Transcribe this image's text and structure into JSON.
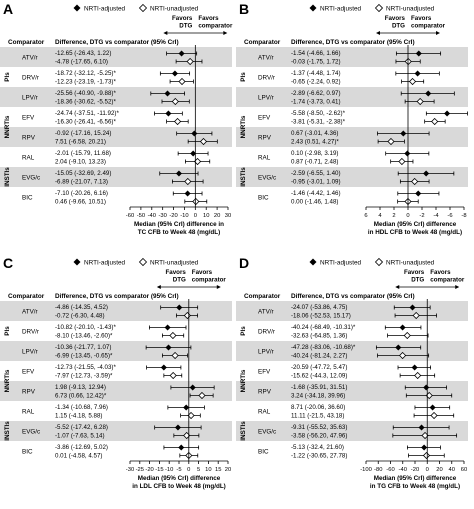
{
  "page_bg": "#ffffff",
  "colors": {
    "band": "#d9d9d9",
    "ink": "#000000",
    "open_marker": "#ffffff",
    "grid": "#000000"
  },
  "legend": {
    "adjusted": "NRTI-adjusted",
    "unadjusted": "NRTI-unadjusted"
  },
  "chart_data": [
    {
      "type": "forest",
      "panel": "A",
      "col_comparator": "Comparator",
      "col_difference": "Difference, DTG vs comparator (95% CrI)",
      "favors_dtg": [
        "Favors",
        "DTG"
      ],
      "favors_comparator": [
        "Favors",
        "comparator"
      ],
      "xlabel": [
        "Median (95% CrI) difference in",
        "TC CFB to Week 48 (mg/dL)"
      ],
      "xlim": [
        -60,
        30
      ],
      "xticks": [
        -60,
        -50,
        -40,
        -30,
        -20,
        -10,
        0,
        10,
        20,
        30
      ],
      "xtick_labels": [
        "-60",
        "-50",
        "-40",
        "-30",
        "-20",
        "-10",
        "0",
        "10",
        "20",
        "30"
      ],
      "groups": [
        {
          "label": "PIs",
          "rows": [
            0,
            1,
            2
          ]
        },
        {
          "label": "NNRTIs",
          "rows": [
            3,
            4
          ]
        },
        {
          "label": "INSTIs",
          "rows": [
            5,
            6,
            7
          ]
        }
      ],
      "rows": [
        {
          "comparator": "ATV/r",
          "shaded": true,
          "adjusted": {
            "text": "-12.65 (-26.43, 1.22)",
            "est": -12.65,
            "lo": -26.43,
            "hi": 1.22
          },
          "unadjusted": {
            "text": "-4.78 (-17.65, 6.10)",
            "est": -4.78,
            "lo": -17.65,
            "hi": 6.1
          }
        },
        {
          "comparator": "DRV/r",
          "shaded": false,
          "adjusted": {
            "text": "-18.72 (-32.12, -5.25)*",
            "est": -18.72,
            "lo": -32.12,
            "hi": -5.25
          },
          "unadjusted": {
            "text": "-12.23 (-23.19, -1.73)*",
            "est": -12.23,
            "lo": -23.19,
            "hi": -1.73
          }
        },
        {
          "comparator": "LPV/r",
          "shaded": true,
          "adjusted": {
            "text": "-25.56 (-40.90, -9.88)*",
            "est": -25.56,
            "lo": -40.9,
            "hi": -9.88
          },
          "unadjusted": {
            "text": "-18.36 (-30.62, -5.52)*",
            "est": -18.36,
            "lo": -30.62,
            "hi": -5.52
          }
        },
        {
          "comparator": "EFV",
          "shaded": false,
          "adjusted": {
            "text": "-24.74 (-37.51, -11.92)*",
            "est": -24.74,
            "lo": -37.51,
            "hi": -11.92
          },
          "unadjusted": {
            "text": "-16.30 (-26.41, -6.56)*",
            "est": -16.3,
            "lo": -26.41,
            "hi": -6.56
          }
        },
        {
          "comparator": "RPV",
          "shaded": true,
          "adjusted": {
            "text": "-0.92 (-17.16, 15.24)",
            "est": -0.92,
            "lo": -17.16,
            "hi": 15.24
          },
          "unadjusted": {
            "text": "7.51 (-6.58, 20.21)",
            "est": 7.51,
            "lo": -6.58,
            "hi": 20.21
          }
        },
        {
          "comparator": "RAL",
          "shaded": false,
          "adjusted": {
            "text": "-2.01 (-15.79, 11.68)",
            "est": -2.01,
            "lo": -15.79,
            "hi": 11.68
          },
          "unadjusted": {
            "text": "2.04 (-9.10, 13.23)",
            "est": 2.04,
            "lo": -9.1,
            "hi": 13.23
          }
        },
        {
          "comparator": "EVG/c",
          "shaded": true,
          "adjusted": {
            "text": "-15.05 (-32.69, 2.49)",
            "est": -15.05,
            "lo": -32.69,
            "hi": 2.49
          },
          "unadjusted": {
            "text": "-6.89 (-21.07, 7.13)",
            "est": -6.89,
            "lo": -21.07,
            "hi": 7.13
          }
        },
        {
          "comparator": "BIC",
          "shaded": false,
          "adjusted": {
            "text": "-7.10 (-20.26, 6.16)",
            "est": -7.1,
            "lo": -20.26,
            "hi": 6.16
          },
          "unadjusted": {
            "text": "0.46 (-9.66, 10.51)",
            "est": 0.46,
            "lo": -9.66,
            "hi": 10.51
          }
        }
      ]
    },
    {
      "type": "forest",
      "panel": "B",
      "col_comparator": "Comparator",
      "col_difference": "Difference, DTG vs comparator (95% CrI)",
      "favors_dtg": [
        "Favors",
        "DTG"
      ],
      "favors_comparator": [
        "Favors",
        "comparator"
      ],
      "xlabel": [
        "Median (95% CrI) difference",
        "in HDL CFB to Week 48 (mg/dL)"
      ],
      "xlim": [
        -8,
        6
      ],
      "xticks": [
        6,
        4,
        2,
        0,
        -2,
        -4,
        -6,
        -8
      ],
      "xtick_labels": [
        "6",
        "4",
        "2",
        "0",
        "-2",
        "-4",
        "-6",
        "-8"
      ],
      "reversed": true,
      "groups": [
        {
          "label": "PIs",
          "rows": [
            0,
            1,
            2
          ]
        },
        {
          "label": "NNRTIs",
          "rows": [
            3,
            4
          ]
        },
        {
          "label": "INSTIs",
          "rows": [
            5,
            6,
            7
          ]
        }
      ],
      "rows": [
        {
          "comparator": "ATV/r",
          "shaded": true,
          "adjusted": {
            "text": "-1.54 (-4.66, 1.66)",
            "est": -1.54,
            "lo": -4.66,
            "hi": 1.66
          },
          "unadjusted": {
            "text": "-0.03 (-1.75, 1.72)",
            "est": -0.03,
            "lo": -1.75,
            "hi": 1.72
          }
        },
        {
          "comparator": "DRV/r",
          "shaded": false,
          "adjusted": {
            "text": "-1.37 (-4.48, 1.74)",
            "est": -1.37,
            "lo": -4.48,
            "hi": 1.74
          },
          "unadjusted": {
            "text": "-0.65 (-2.24, 0.92)",
            "est": -0.65,
            "lo": -2.24,
            "hi": 0.92
          }
        },
        {
          "comparator": "LPV/r",
          "shaded": true,
          "adjusted": {
            "text": "-2.89 (-6.62, 0.97)",
            "est": -2.89,
            "lo": -6.62,
            "hi": 0.97
          },
          "unadjusted": {
            "text": "-1.74 (-3.73, 0.41)",
            "est": -1.74,
            "lo": -3.73,
            "hi": 0.41
          }
        },
        {
          "comparator": "EFV",
          "shaded": false,
          "adjusted": {
            "text": "-5.58 (-8.50, -2.62)*",
            "est": -5.58,
            "lo": -8.5,
            "hi": -2.62
          },
          "unadjusted": {
            "text": "-3.81 (-5.31, -2.38)*",
            "est": -3.81,
            "lo": -5.31,
            "hi": -2.38
          }
        },
        {
          "comparator": "RPV",
          "shaded": true,
          "adjusted": {
            "text": "0.67 (-3.01, 4.36)",
            "est": 0.67,
            "lo": -3.01,
            "hi": 4.36
          },
          "unadjusted": {
            "text": "2.43 (0.51, 4.27)*",
            "est": 2.43,
            "lo": 0.51,
            "hi": 4.27
          }
        },
        {
          "comparator": "RAL",
          "shaded": false,
          "adjusted": {
            "text": "0.10 (-2.98, 3.19)",
            "est": 0.1,
            "lo": -2.98,
            "hi": 3.19
          },
          "unadjusted": {
            "text": "0.87 (-0.71, 2.48)",
            "est": 0.87,
            "lo": -0.71,
            "hi": 2.48
          }
        },
        {
          "comparator": "EVG/c",
          "shaded": true,
          "adjusted": {
            "text": "-2.59 (-6.55, 1.40)",
            "est": -2.59,
            "lo": -6.55,
            "hi": 1.4
          },
          "unadjusted": {
            "text": "-0.95 (-3.01, 1.09)",
            "est": -0.95,
            "lo": -3.01,
            "hi": 1.09
          }
        },
        {
          "comparator": "BIC",
          "shaded": false,
          "adjusted": {
            "text": "-1.46 (-4.42, 1.46)",
            "est": -1.46,
            "lo": -4.42,
            "hi": 1.46
          },
          "unadjusted": {
            "text": "0.00 (-1.46, 1.48)",
            "est": 0.0,
            "lo": -1.46,
            "hi": 1.48
          }
        }
      ]
    },
    {
      "type": "forest",
      "panel": "C",
      "col_comparator": "Comparator",
      "col_difference": "Difference, DTG vs comparator (95% CrI)",
      "favors_dtg": [
        "Favors",
        "DTG"
      ],
      "favors_comparator": [
        "Favors",
        "comparator"
      ],
      "xlabel": [
        "Median (95% CrI) difference",
        "in LDL CFB to Week 48 (mg/dL)"
      ],
      "xlim": [
        -30,
        20
      ],
      "xticks": [
        -30,
        -25,
        -20,
        -15,
        -10,
        -5,
        0,
        5,
        10,
        15,
        20
      ],
      "xtick_labels": [
        "-30",
        "-25",
        "-20",
        "-15",
        "-10",
        "-5",
        "0",
        "5",
        "10",
        "15",
        "20"
      ],
      "groups": [
        {
          "label": "PIs",
          "rows": [
            0,
            1,
            2
          ]
        },
        {
          "label": "NNRTIs",
          "rows": [
            3,
            4
          ]
        },
        {
          "label": "INSTIs",
          "rows": [
            5,
            6,
            7
          ]
        }
      ],
      "rows": [
        {
          "comparator": "ATV/r",
          "shaded": true,
          "adjusted": {
            "text": "-4.86 (-14.35, 4.52)",
            "est": -4.86,
            "lo": -14.35,
            "hi": 4.52
          },
          "unadjusted": {
            "text": "-0.72 (-6.30, 4.48)",
            "est": -0.72,
            "lo": -6.3,
            "hi": 4.48
          }
        },
        {
          "comparator": "DRV/r",
          "shaded": false,
          "adjusted": {
            "text": "-10.82 (-20.10, -1.43)*",
            "est": -10.82,
            "lo": -20.1,
            "hi": -1.43
          },
          "unadjusted": {
            "text": "-8.10 (-13.46, -2.60)*",
            "est": -8.1,
            "lo": -13.46,
            "hi": -2.6
          }
        },
        {
          "comparator": "LPV/r",
          "shaded": true,
          "adjusted": {
            "text": "-10.36 (-21.77, 1.07)",
            "est": -10.36,
            "lo": -21.77,
            "hi": 1.07
          },
          "unadjusted": {
            "text": "-6.99 (-13.45, -0.65)*",
            "est": -6.99,
            "lo": -13.45,
            "hi": -0.65
          }
        },
        {
          "comparator": "EFV",
          "shaded": false,
          "adjusted": {
            "text": "-12.73 (-21.55, -4.03)*",
            "est": -12.73,
            "lo": -21.55,
            "hi": -4.03
          },
          "unadjusted": {
            "text": "-7.97 (-12.73, -3.59)*",
            "est": -7.97,
            "lo": -12.73,
            "hi": -3.59
          }
        },
        {
          "comparator": "RPV",
          "shaded": true,
          "adjusted": {
            "text": "1.98 (-9.13, 12.94)",
            "est": 1.98,
            "lo": -9.13,
            "hi": 12.94
          },
          "unadjusted": {
            "text": "6.73 (0.66, 12.42)*",
            "est": 6.73,
            "lo": 0.66,
            "hi": 12.42
          }
        },
        {
          "comparator": "RAL",
          "shaded": false,
          "adjusted": {
            "text": "-1.34 (-10.68, 7.96)",
            "est": -1.34,
            "lo": -10.68,
            "hi": 7.96
          },
          "unadjusted": {
            "text": "1.15 (-4.18, 5.88)",
            "est": 1.15,
            "lo": -4.18,
            "hi": 5.88
          }
        },
        {
          "comparator": "EVG/c",
          "shaded": true,
          "adjusted": {
            "text": "-5.52 (-17.42, 6.28)",
            "est": -5.52,
            "lo": -17.42,
            "hi": 6.28
          },
          "unadjusted": {
            "text": "-1.07 (-7.63, 5.14)",
            "est": -1.07,
            "lo": -7.63,
            "hi": 5.14
          }
        },
        {
          "comparator": "BIC",
          "shaded": false,
          "adjusted": {
            "text": "-3.86 (-12.69, 5.02)",
            "est": -3.86,
            "lo": -12.69,
            "hi": 5.02
          },
          "unadjusted": {
            "text": "0.01 (-4.58, 4.57)",
            "est": 0.01,
            "lo": -4.58,
            "hi": 4.57
          }
        }
      ]
    },
    {
      "type": "forest",
      "panel": "D",
      "col_comparator": "Comparator",
      "col_difference": "Difference, DTG vs comparator (95% CrI)",
      "favors_dtg": [
        "Favors",
        "DTG"
      ],
      "favors_comparator": [
        "Favors",
        "comparator"
      ],
      "xlabel": [
        "Median (95% CrI) difference",
        "in TG CFB to Week 48 (mg/dL)"
      ],
      "xlim": [
        -100,
        60
      ],
      "xticks": [
        -100,
        -80,
        -60,
        -40,
        -20,
        0,
        20,
        40,
        60
      ],
      "xtick_labels": [
        "-100",
        "-80",
        "-60",
        "-40",
        "-20",
        "0",
        "20",
        "40",
        "60"
      ],
      "groups": [
        {
          "label": "PIs",
          "rows": [
            0,
            1,
            2
          ]
        },
        {
          "label": "NNRTIs",
          "rows": [
            3,
            4
          ]
        },
        {
          "label": "INSTIs",
          "rows": [
            5,
            6,
            7
          ]
        }
      ],
      "rows": [
        {
          "comparator": "ATV/r",
          "shaded": true,
          "adjusted": {
            "text": "-24.07 (-53.86, 4.75)",
            "est": -24.07,
            "lo": -53.86,
            "hi": 4.75
          },
          "unadjusted": {
            "text": "-18.06 (-52.53, 15.17)",
            "est": -18.06,
            "lo": -52.53,
            "hi": 15.17
          }
        },
        {
          "comparator": "DRV/r",
          "shaded": false,
          "adjusted": {
            "text": "-40.24 (-68.49, -10.31)*",
            "est": -40.24,
            "lo": -68.49,
            "hi": -10.31
          },
          "unadjusted": {
            "text": "-32.63 (-64.85, 1.36)",
            "est": -32.63,
            "lo": -64.85,
            "hi": 1.36
          }
        },
        {
          "comparator": "LPV/r",
          "shaded": true,
          "adjusted": {
            "text": "-47.28 (-83.06, -10.68)*",
            "est": -47.28,
            "lo": -83.06,
            "hi": -10.68
          },
          "unadjusted": {
            "text": "-40.24 (-81.24, 2.27)",
            "est": -40.24,
            "lo": -81.24,
            "hi": 2.27
          }
        },
        {
          "comparator": "EFV",
          "shaded": false,
          "adjusted": {
            "text": "-20.59 (-47.72, 5.47)",
            "est": -20.59,
            "lo": -47.72,
            "hi": 5.47
          },
          "unadjusted": {
            "text": "-15.62 (-44.3, 12.09)",
            "est": -15.62,
            "lo": -44.3,
            "hi": 12.09
          }
        },
        {
          "comparator": "RPV",
          "shaded": true,
          "adjusted": {
            "text": "-1.68 (-35.91, 31.51)",
            "est": -1.68,
            "lo": -35.91,
            "hi": 31.51
          },
          "unadjusted": {
            "text": "3.24 (-34.18, 39.96)",
            "est": 3.24,
            "lo": -34.18,
            "hi": 39.96
          }
        },
        {
          "comparator": "RAL",
          "shaded": false,
          "adjusted": {
            "text": "8.71 (-20.06, 36.60)",
            "est": 8.71,
            "lo": -20.06,
            "hi": 36.6
          },
          "unadjusted": {
            "text": "11.11 (-21.5, 43.18)",
            "est": 11.11,
            "lo": -21.5,
            "hi": 43.18
          }
        },
        {
          "comparator": "EVG/c",
          "shaded": true,
          "adjusted": {
            "text": "-9.31 (-55.52, 35.63)",
            "est": -9.31,
            "lo": -55.52,
            "hi": 35.63
          },
          "unadjusted": {
            "text": "-3.58 (-56.20, 47.96)",
            "est": -3.58,
            "lo": -56.2,
            "hi": 47.96
          }
        },
        {
          "comparator": "BIC",
          "shaded": false,
          "adjusted": {
            "text": "-5.13 (-32.4, 21.60)",
            "est": -5.13,
            "lo": -32.4,
            "hi": 21.6
          },
          "unadjusted": {
            "text": "-1.22 (-30.65, 27.78)",
            "est": -1.22,
            "lo": -30.65,
            "hi": 27.78
          }
        }
      ]
    }
  ]
}
